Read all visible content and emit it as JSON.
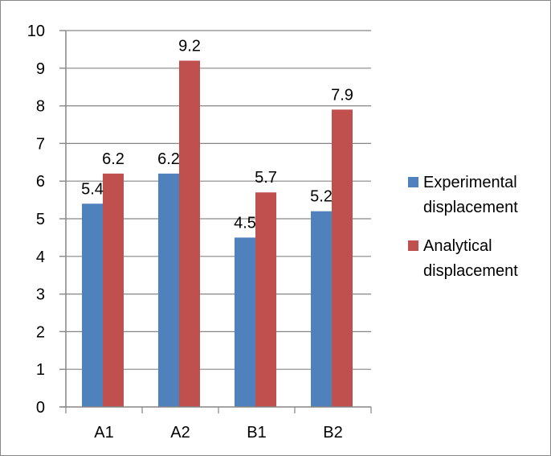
{
  "chart_data": {
    "type": "bar",
    "categories": [
      "A1",
      "A2",
      "B1",
      "B2"
    ],
    "series": [
      {
        "name": "Experimental displacement",
        "name_lines": [
          "Experimental",
          "displacement"
        ],
        "values": [
          5.4,
          6.2,
          4.5,
          5.2
        ],
        "labels": [
          "5.4",
          "6.2",
          "4.5",
          "5.2"
        ],
        "color": "#4F81BD"
      },
      {
        "name": "Analytical displacement",
        "name_lines": [
          "Analytical",
          "displacement"
        ],
        "values": [
          6.2,
          9.2,
          5.7,
          7.9
        ],
        "labels": [
          "6.2",
          "9.2",
          "5.7",
          "7.9"
        ],
        "color": "#C0504D"
      }
    ],
    "ylim": [
      0,
      10
    ],
    "yticks": [
      "0",
      "1",
      "2",
      "3",
      "4",
      "5",
      "6",
      "7",
      "8",
      "9",
      "10"
    ],
    "title": "",
    "xlabel": "",
    "ylabel": "",
    "grid": true,
    "legend_position": "right",
    "gridline_color": "#868686"
  }
}
